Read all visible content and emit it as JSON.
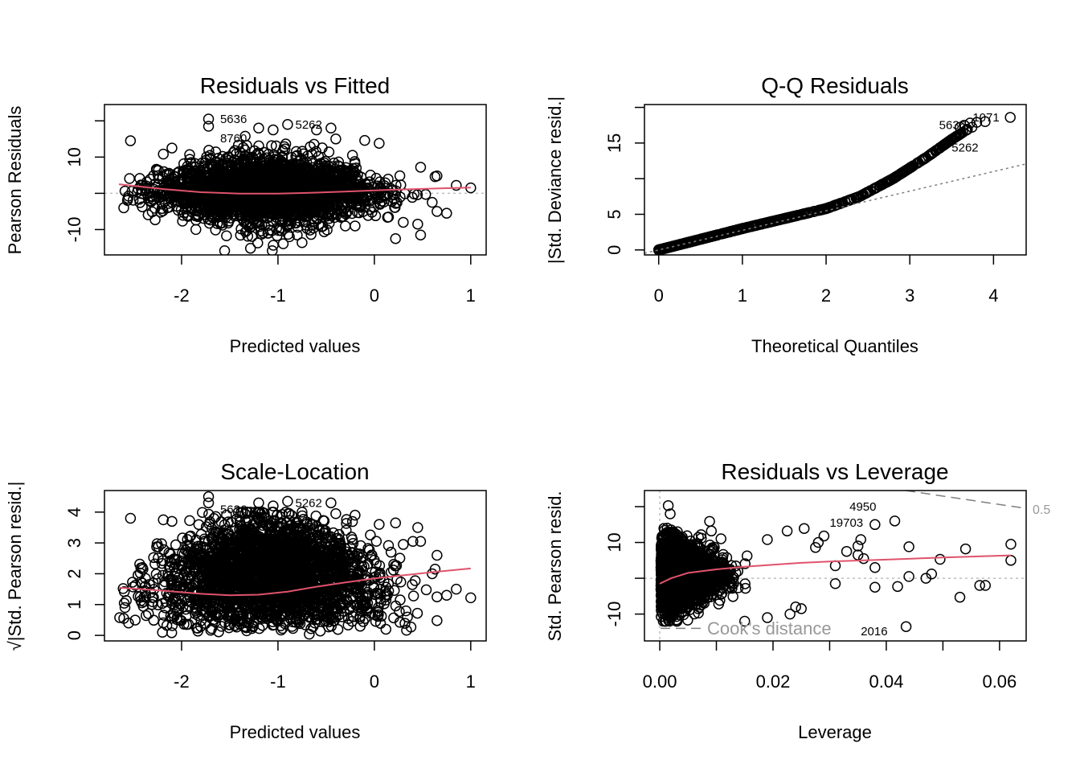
{
  "chart_data": [
    {
      "type": "scatter",
      "title": "Residuals vs Fitted",
      "xlabel": "Predicted values",
      "ylabel": "Pearson Residuals",
      "xlim": [
        -2.8,
        1.16
      ],
      "ylim": [
        -17,
        24.5
      ],
      "xticks": [
        -2,
        -1,
        0,
        1
      ],
      "xtick_labels": [
        "-2",
        "-1",
        "0",
        "1"
      ],
      "yticks": [
        -10,
        0,
        10,
        20
      ],
      "ytick_labels": [
        "-10",
        "",
        "10",
        ""
      ],
      "reference_line": {
        "y": 0,
        "style": "dotted",
        "color": "#bebebe"
      },
      "cloud": {
        "x_range": [
          -2.65,
          0.6
        ],
        "center_x": -1.1,
        "y_spread_max": 12
      },
      "smoother": {
        "color": "#df536b",
        "x": [
          -2.65,
          -2.2,
          -1.8,
          -1.4,
          -1.0,
          -0.6,
          -0.2,
          0.2,
          0.6,
          1.0
        ],
        "y": [
          2.5,
          1.2,
          0.3,
          -0.1,
          -0.1,
          0.2,
          0.6,
          1.0,
          1.3,
          1.6
        ]
      },
      "outliers": [
        {
          "x": -2.53,
          "y": 14.5
        },
        {
          "x": -2.1,
          "y": 12.5
        },
        {
          "x": 0.05,
          "y": 13.8
        },
        {
          "x": -0.1,
          "y": 14.6
        },
        {
          "x": 0.48,
          "y": 7.2
        },
        {
          "x": 0.63,
          "y": 4.6
        },
        {
          "x": 0.65,
          "y": 4.8
        },
        {
          "x": 0.85,
          "y": 2.2
        },
        {
          "x": 1.0,
          "y": 1.5
        },
        {
          "x": 0.6,
          "y": -2.5
        },
        {
          "x": 0.65,
          "y": -5.0
        },
        {
          "x": 0.75,
          "y": -5.5
        },
        {
          "x": 0.45,
          "y": -8.5
        },
        {
          "x": 0.48,
          "y": -11.5
        },
        {
          "x": 0.22,
          "y": -12.5
        },
        {
          "x": 0.3,
          "y": -8.0
        },
        {
          "x": -2.6,
          "y": -4.0
        },
        {
          "x": -0.2,
          "y": -9.0
        },
        {
          "x": -1.1,
          "y": -11.0
        },
        {
          "x": -0.8,
          "y": -11.5
        },
        {
          "x": -1.72,
          "y": 20.5
        },
        {
          "x": -1.72,
          "y": 18.5
        },
        {
          "x": -0.9,
          "y": 19.0
        },
        {
          "x": -0.45,
          "y": 18.0
        },
        {
          "x": -0.6,
          "y": 17.5
        },
        {
          "x": -0.4,
          "y": 15.0
        },
        {
          "x": -1.2,
          "y": 18.0
        },
        {
          "x": -1.05,
          "y": 17.5
        }
      ],
      "point_labels": [
        {
          "text": "5636",
          "x": -1.6,
          "y": 20.5
        },
        {
          "text": "8760",
          "x": -1.6,
          "y": 18.7
        },
        {
          "text": "5262",
          "x": -0.82,
          "y": 19.0
        }
      ]
    },
    {
      "type": "scatter",
      "title": "Q-Q Residuals",
      "xlabel": "Theoretical Quantiles",
      "ylabel": "|Std. Deviance resid.|",
      "xlim": [
        -0.17,
        4.39
      ],
      "ylim": [
        -0.7,
        20.4
      ],
      "xticks": [
        0,
        1,
        2,
        3,
        4
      ],
      "xtick_labels": [
        "0",
        "1",
        "2",
        "3",
        "4"
      ],
      "yticks": [
        0,
        5,
        10,
        15,
        20
      ],
      "ytick_labels": [
        "0",
        "5",
        "",
        "15",
        ""
      ],
      "reference_line": {
        "slope": 2.75,
        "intercept": 0,
        "style": "dotted",
        "color": "#7f7f7f"
      },
      "curve": {
        "x": [
          0,
          0.5,
          1.0,
          1.5,
          2.0,
          2.4,
          2.8,
          3.2,
          3.5,
          3.7,
          3.9,
          4.2
        ],
        "y": [
          0,
          1.5,
          3.0,
          4.4,
          5.8,
          7.5,
          10.0,
          13.0,
          15.5,
          17.0,
          18.0,
          18.5
        ]
      },
      "point_labels": [
        {
          "text": "1071",
          "x": 3.75,
          "y": 18.6
        },
        {
          "text": "5636",
          "x": 3.35,
          "y": 17.5
        },
        {
          "text": "5262",
          "x": 3.5,
          "y": 18.0
        }
      ]
    },
    {
      "type": "scatter",
      "title": "Scale-Location",
      "xlabel": "Predicted values",
      "ylabel": "√|Std. Pearson resid.|",
      "xlim": [
        -2.8,
        1.16
      ],
      "ylim": [
        -0.18,
        4.7
      ],
      "xticks": [
        -2,
        -1,
        0,
        1
      ],
      "xtick_labels": [
        "-2",
        "-1",
        "0",
        "1"
      ],
      "yticks": [
        0,
        1,
        2,
        3,
        4
      ],
      "ytick_labels": [
        "0",
        "1",
        "2",
        "3",
        "4"
      ],
      "smoother": {
        "color": "#df536b",
        "x": [
          -2.65,
          -2.2,
          -1.8,
          -1.5,
          -1.2,
          -0.9,
          -0.6,
          -0.3,
          0.0,
          0.3,
          0.6,
          1.0
        ],
        "y": [
          1.55,
          1.45,
          1.35,
          1.3,
          1.32,
          1.42,
          1.58,
          1.72,
          1.85,
          1.95,
          2.05,
          2.17
        ]
      },
      "outliers": [
        {
          "x": -2.53,
          "y": 3.8
        },
        {
          "x": -2.1,
          "y": 3.7
        },
        {
          "x": 0.05,
          "y": 3.6
        },
        {
          "x": 0.22,
          "y": 3.65
        },
        {
          "x": 0.45,
          "y": 3.5
        },
        {
          "x": 0.4,
          "y": 3.05
        },
        {
          "x": 0.48,
          "y": 3.05
        },
        {
          "x": 0.65,
          "y": 2.6
        },
        {
          "x": 0.63,
          "y": 2.15
        },
        {
          "x": 0.6,
          "y": 2.0
        },
        {
          "x": 0.85,
          "y": 1.5
        },
        {
          "x": 1.0,
          "y": 1.22
        },
        {
          "x": 0.65,
          "y": 1.25
        },
        {
          "x": 0.75,
          "y": 1.3
        },
        {
          "x": 0.65,
          "y": 0.48
        },
        {
          "x": 0.38,
          "y": 0.27
        },
        {
          "x": 0.12,
          "y": 0.2
        },
        {
          "x": -2.6,
          "y": 0.55
        },
        {
          "x": -2.55,
          "y": 0.4
        },
        {
          "x": -1.72,
          "y": 4.5
        },
        {
          "x": -1.72,
          "y": 4.3
        },
        {
          "x": -0.9,
          "y": 4.35
        },
        {
          "x": -0.45,
          "y": 4.3
        },
        {
          "x": -0.4,
          "y": 3.95
        },
        {
          "x": -1.2,
          "y": 4.3
        },
        {
          "x": -1.05,
          "y": 4.2
        },
        {
          "x": -0.2,
          "y": 3.9
        },
        {
          "x": 0.3,
          "y": 2.95
        }
      ],
      "point_labels": [
        {
          "text": "5636",
          "x": -1.6,
          "y": 4.5
        },
        {
          "text": "8760",
          "x": -1.6,
          "y": 4.3
        },
        {
          "text": "5262",
          "x": -0.82,
          "y": 4.3
        }
      ]
    },
    {
      "type": "scatter",
      "title": "Residuals vs Leverage",
      "xlabel": "Leverage",
      "ylabel": "Std. Pearson resid.",
      "xlim": [
        -0.0027,
        0.0647
      ],
      "ylim": [
        -17.5,
        24.5
      ],
      "xticks": [
        0.0,
        0.01,
        0.02,
        0.03,
        0.04,
        0.05,
        0.06
      ],
      "xtick_labels": [
        "0.00",
        "",
        "0.02",
        "",
        "0.04",
        "",
        "0.06"
      ],
      "yticks": [
        -10,
        0,
        10,
        20
      ],
      "ytick_labels": [
        "-10",
        "",
        "10",
        ""
      ],
      "reference_line": {
        "y": 0,
        "style": "dotted",
        "color": "#bebebe"
      },
      "smoother": {
        "color": "#df536b",
        "x": [
          0.0,
          0.002,
          0.005,
          0.01,
          0.015,
          0.02,
          0.025,
          0.03,
          0.04,
          0.05,
          0.062
        ],
        "y": [
          -1.5,
          0.0,
          1.5,
          2.5,
          3.2,
          3.8,
          4.3,
          4.7,
          5.2,
          5.8,
          6.4
        ]
      },
      "outliers": [
        {
          "x": 0.0015,
          "y": 20.3
        },
        {
          "x": 0.019,
          "y": 10.8
        },
        {
          "x": 0.0225,
          "y": 13.2
        },
        {
          "x": 0.0255,
          "y": 13.9
        },
        {
          "x": 0.0275,
          "y": 8.6
        },
        {
          "x": 0.028,
          "y": 10.0
        },
        {
          "x": 0.029,
          "y": 11.8
        },
        {
          "x": 0.033,
          "y": 7.5
        },
        {
          "x": 0.035,
          "y": 9.0
        },
        {
          "x": 0.0355,
          "y": 10.8
        },
        {
          "x": 0.035,
          "y": 6.5
        },
        {
          "x": 0.036,
          "y": 5.5
        },
        {
          "x": 0.038,
          "y": 3.0
        },
        {
          "x": 0.044,
          "y": 8.8
        },
        {
          "x": 0.044,
          "y": 0.5
        },
        {
          "x": 0.047,
          "y": 0.0
        },
        {
          "x": 0.048,
          "y": 1.2
        },
        {
          "x": 0.0495,
          "y": 5.3
        },
        {
          "x": 0.053,
          "y": -5.3
        },
        {
          "x": 0.054,
          "y": 8.2
        },
        {
          "x": 0.0565,
          "y": -2.0
        },
        {
          "x": 0.0575,
          "y": -2.0
        },
        {
          "x": 0.062,
          "y": 9.5
        },
        {
          "x": 0.062,
          "y": 5.0
        },
        {
          "x": 0.038,
          "y": -2.5
        },
        {
          "x": 0.042,
          "y": -2.3
        },
        {
          "x": 0.031,
          "y": 3.5
        },
        {
          "x": 0.031,
          "y": -1.5
        },
        {
          "x": 0.0435,
          "y": -13.5
        },
        {
          "x": 0.0415,
          "y": 16.0
        },
        {
          "x": 0.038,
          "y": 15.0
        },
        {
          "x": 0.024,
          "y": -8.0
        },
        {
          "x": 0.023,
          "y": -10.0
        },
        {
          "x": 0.025,
          "y": -8.5
        },
        {
          "x": 0.015,
          "y": -12.0
        },
        {
          "x": 0.019,
          "y": -11.0
        }
      ],
      "point_labels": [
        {
          "text": "19703",
          "x": 0.03,
          "y": 15.5
        },
        {
          "text": "4950",
          "x": 0.0335,
          "y": 16.4
        },
        {
          "text": "2016",
          "x": 0.0355,
          "y": -14.8
        }
      ],
      "cooks_distance": {
        "legend_label": "Cook's distance",
        "contour_label": "0.5",
        "color": "#7f7f7f"
      }
    }
  ]
}
